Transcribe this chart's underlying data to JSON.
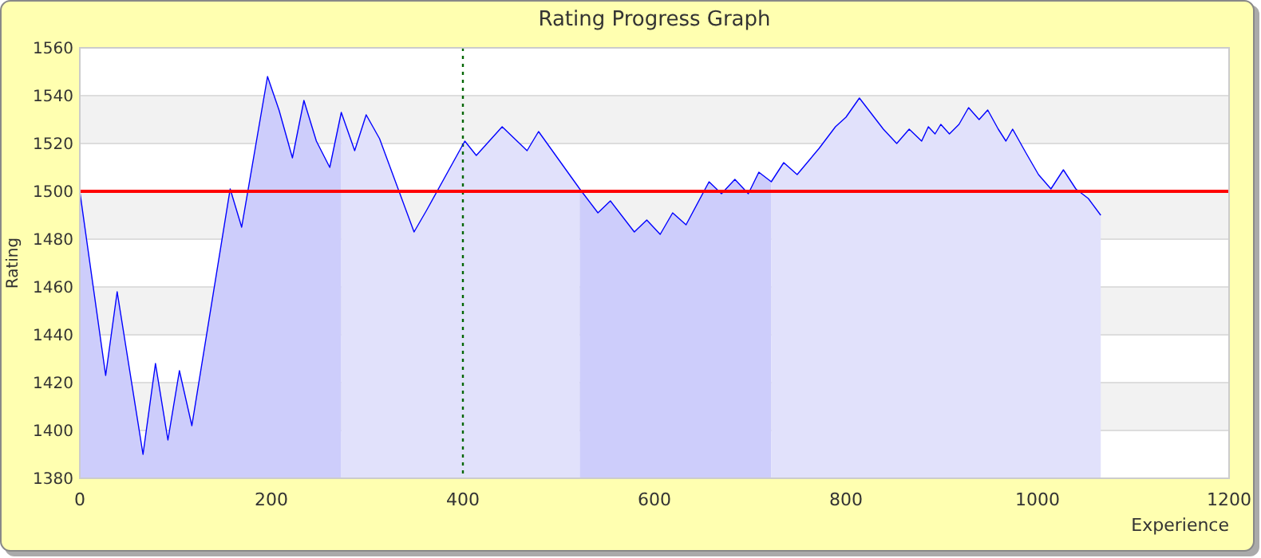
{
  "chart_data": {
    "type": "line",
    "title": "Rating Progress Graph",
    "xlabel": "Experience",
    "ylabel": "Rating",
    "xlim": [
      0,
      1200
    ],
    "xticks": [
      0,
      200,
      400,
      600,
      800,
      1000,
      1200
    ],
    "ylim": [
      1380,
      1560
    ],
    "yticks": [
      1380,
      1400,
      1420,
      1440,
      1460,
      1480,
      1500,
      1520,
      1540,
      1560
    ],
    "grid": "y",
    "marker": "none",
    "line_style": "solid",
    "series": [
      {
        "type": "line",
        "color": "#0000ff",
        "x": [
          0,
          27,
          39,
          66,
          79,
          92,
          104,
          117,
          157,
          169,
          196,
          208,
          222,
          234,
          247,
          261,
          273,
          287,
          299,
          313,
          349,
          362,
          402,
          414,
          441,
          467,
          479,
          522,
          541,
          554,
          579,
          592,
          606,
          619,
          633,
          657,
          670,
          684,
          698,
          709,
          722,
          735,
          749,
          772,
          789,
          800,
          814,
          839,
          853,
          866,
          879,
          886,
          893,
          899,
          908,
          918,
          928,
          939,
          948,
          959,
          967,
          974,
          988,
          1001,
          1014,
          1027,
          1040,
          1053,
          1066
        ],
        "values": [
          1500,
          1423,
          1458,
          1390,
          1428,
          1396,
          1425,
          1402,
          1501,
          1485,
          1548,
          1534,
          1514,
          1538,
          1521,
          1510,
          1533,
          1517,
          1532,
          1522,
          1483,
          1492,
          1521,
          1515,
          1527,
          1517,
          1525,
          1501,
          1491,
          1496,
          1483,
          1488,
          1482,
          1491,
          1486,
          1504,
          1499,
          1505,
          1499,
          1508,
          1504,
          1512,
          1507,
          1518,
          1527,
          1531,
          1539,
          1526,
          1520,
          1526,
          1521,
          1527,
          1524,
          1528,
          1524,
          1528,
          1535,
          1530,
          1534,
          1526,
          1521,
          1526,
          1516,
          1507,
          1501,
          1509,
          1501,
          1497,
          1490
        ]
      },
      {
        "type": "area",
        "color": "#cdcdfb",
        "x": [
          0,
          27,
          39,
          66,
          79,
          92,
          104,
          117,
          157,
          169,
          196,
          208,
          222,
          234,
          247,
          261,
          273
        ],
        "values": [
          1500,
          1423,
          1458,
          1390,
          1428,
          1396,
          1425,
          1402,
          1501,
          1485,
          1548,
          1534,
          1514,
          1538,
          1521,
          1510,
          1533
        ]
      },
      {
        "type": "area",
        "color": "#e1e1fb",
        "x": [
          273,
          287,
          299,
          313,
          349,
          362,
          402,
          414,
          441,
          467,
          479,
          522
        ],
        "values": [
          1533,
          1517,
          1532,
          1522,
          1483,
          1492,
          1521,
          1515,
          1527,
          1517,
          1525,
          1501
        ]
      },
      {
        "type": "area",
        "color": "#cdcdfb",
        "x": [
          522,
          541,
          554,
          579,
          592,
          606,
          619,
          633,
          657,
          670,
          684,
          698,
          709,
          722
        ],
        "values": [
          1501,
          1491,
          1496,
          1483,
          1488,
          1482,
          1491,
          1486,
          1504,
          1499,
          1505,
          1499,
          1508,
          1504
        ]
      },
      {
        "type": "area",
        "color": "#e1e1fb",
        "x": [
          722,
          735,
          749,
          772,
          789,
          800,
          814,
          839,
          853,
          866,
          879,
          886,
          893,
          899,
          908,
          918,
          928,
          939,
          948,
          959,
          967,
          974,
          988,
          1001,
          1014,
          1027,
          1040,
          1053,
          1066
        ],
        "values": [
          1504,
          1512,
          1507,
          1518,
          1527,
          1531,
          1539,
          1526,
          1520,
          1526,
          1521,
          1527,
          1524,
          1528,
          1524,
          1528,
          1535,
          1530,
          1534,
          1526,
          1521,
          1526,
          1516,
          1507,
          1501,
          1509,
          1501,
          1497,
          1490
        ]
      }
    ],
    "ref_lines": [
      {
        "axis": "y",
        "value": 1500,
        "color": "#ff0000",
        "line_style": "solid"
      },
      {
        "axis": "x",
        "value": 400,
        "color": "#006600",
        "line_style": "dotted"
      }
    ]
  }
}
